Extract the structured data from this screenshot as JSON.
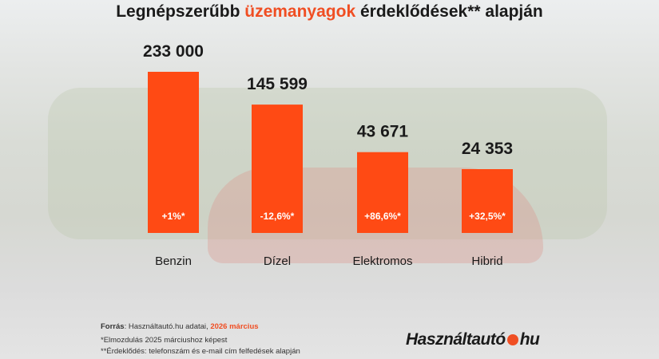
{
  "title": {
    "part1": "Legnépszerűbb ",
    "highlight": "üzemanyagok",
    "part2": " érdeklődések** alapján"
  },
  "chart_data": {
    "type": "bar",
    "categories": [
      "Benzin",
      "Dízel",
      "Elektromos",
      "Hibrid"
    ],
    "values": [
      233000,
      145599,
      43671,
      24353
    ],
    "value_labels": [
      "233 000",
      "145 599",
      "43 671",
      "24 353"
    ],
    "change_labels": [
      "+1%*",
      "-12,6%*",
      "+86,6%*",
      "+32,5%*"
    ],
    "bar_color": "#ff4a14",
    "grid": false
  },
  "footer": {
    "source_label": "Forrás",
    "source_text": ": Használtautó.hu adatai, ",
    "source_date": "2026 március",
    "note1": "*Elmozdulás 2025 márciushoz képest",
    "note2": "**Érdeklődés: telefonszám és e-mail cím felfedések alapján"
  },
  "logo": {
    "left": "Használtautó",
    "right": "hu"
  },
  "colors": {
    "accent": "#f04e23"
  }
}
